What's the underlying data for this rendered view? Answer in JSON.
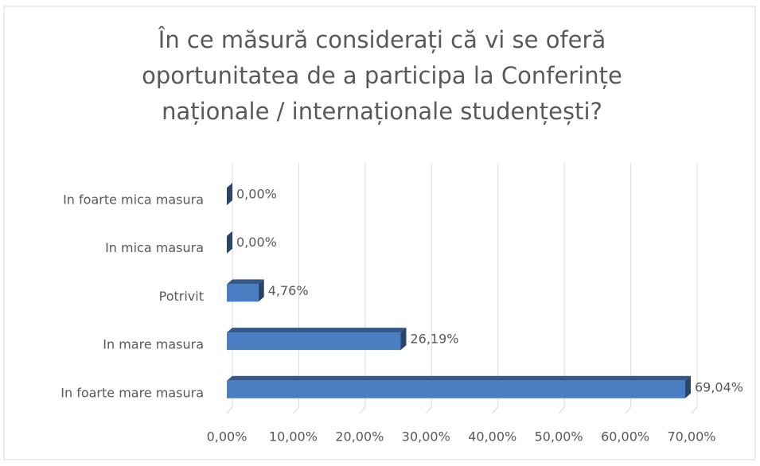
{
  "chart_data": {
    "type": "bar3d_horizontal",
    "title": [
      "În ce măsură considerați că vi se oferă",
      "oportunitatea de a participa la Conferințe",
      "naționale / internaționale studențești?"
    ],
    "categories": [
      "In foarte mica masura",
      "In mica masura",
      "Potrivit",
      "In mare masura",
      "In foarte mare masura"
    ],
    "values": [
      0,
      0,
      4.76,
      26.19,
      69.04
    ],
    "value_labels": [
      "0,00%",
      "0,00%",
      "4,76%",
      "26,19%",
      "69,04%"
    ],
    "color": "#4a7ec2",
    "xlim": [
      0,
      70
    ],
    "xticks": [
      {
        "value": 0,
        "label": "0,00%"
      },
      {
        "value": 10,
        "label": "10,00%"
      },
      {
        "value": 20,
        "label": "20,00%"
      },
      {
        "value": 30,
        "label": "30,00%"
      },
      {
        "value": 40,
        "label": "40,00%"
      },
      {
        "value": 50,
        "label": "50,00%"
      },
      {
        "value": 60,
        "label": "60,00%"
      },
      {
        "value": 70,
        "label": "70,00%"
      }
    ],
    "grid": true
  }
}
